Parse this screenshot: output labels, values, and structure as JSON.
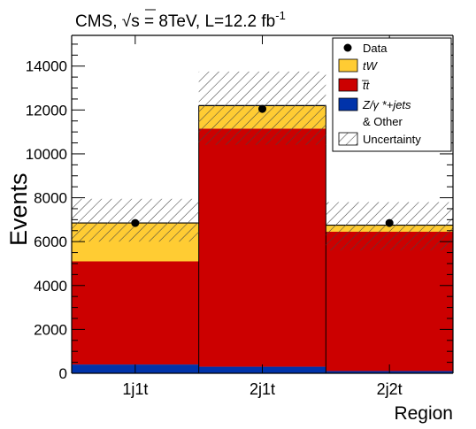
{
  "chart_data": {
    "type": "bar",
    "stacked": true,
    "title": "CMS, √s = 8TeV, L=12.2 fb",
    "title_superscript": "-1",
    "xlabel": "Region",
    "ylabel": "Events",
    "categories": [
      "1j1t",
      "2j1t",
      "2j2t"
    ],
    "ylim": [
      0,
      15400
    ],
    "yticks": [
      0,
      2000,
      4000,
      6000,
      8000,
      10000,
      12000,
      14000
    ],
    "grid": false,
    "legend_placement": "top-right",
    "series": [
      {
        "name": "Z/γ *+jets & Other",
        "legend_lines": [
          "Z/γ *+jets",
          "& Other"
        ],
        "color": "#0033aa",
        "values": [
          400,
          300,
          100
        ]
      },
      {
        "name": "t̅t",
        "color": "#cc0000",
        "values": [
          4700,
          10850,
          6350
        ]
      },
      {
        "name": "tW",
        "color": "#ffcc33",
        "values": [
          1750,
          1050,
          300
        ]
      }
    ],
    "data_points": {
      "name": "Data",
      "values": [
        6850,
        12050,
        6850
      ]
    },
    "uncertainty": {
      "name": "Uncertainty",
      "low": [
        6000,
        10400,
        5600
      ],
      "high": [
        7950,
        13750,
        7800
      ]
    }
  }
}
